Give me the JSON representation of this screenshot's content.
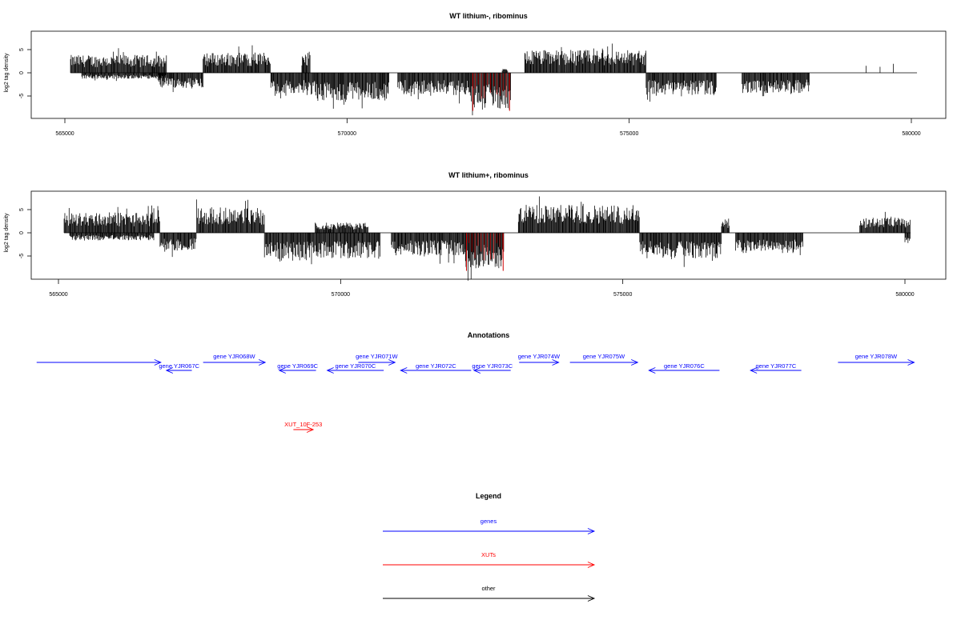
{
  "chart_data": [
    {
      "type": "bar",
      "title": "WT lithium-, ribominus",
      "ylabel": "log2 tag density",
      "xlim": [
        565000,
        580000
      ],
      "ylim": [
        -9,
        9
      ],
      "yticks": [
        -5,
        0,
        5
      ],
      "xticks": [
        565000,
        570000,
        575000,
        580000
      ],
      "baseline": {
        "start": 565100,
        "end": 580100
      },
      "highlight_color": "#cc0000",
      "highlights": [
        {
          "start": 572230,
          "end": 572880,
          "min": -8.2
        }
      ],
      "regions": [
        {
          "start": 565100,
          "end": 566800,
          "sign": 1,
          "amp": 3.5
        },
        {
          "start": 565300,
          "end": 566800,
          "sign": -1,
          "amp": 1.2
        },
        {
          "start": 566650,
          "end": 567450,
          "sign": -1,
          "amp": 3.0
        },
        {
          "start": 567450,
          "end": 568650,
          "sign": 1,
          "amp": 4.0
        },
        {
          "start": 568650,
          "end": 569450,
          "sign": -1,
          "amp": 4.5
        },
        {
          "start": 569200,
          "end": 569350,
          "sign": 1,
          "amp": 3.5
        },
        {
          "start": 569450,
          "end": 570750,
          "sign": -1,
          "amp": 5.5
        },
        {
          "start": 570900,
          "end": 572200,
          "sign": -1,
          "amp": 4.5
        },
        {
          "start": 572200,
          "end": 572900,
          "sign": -1,
          "amp": 7.0
        },
        {
          "start": 572750,
          "end": 572850,
          "sign": 1,
          "amp": 0.8
        },
        {
          "start": 573150,
          "end": 575300,
          "sign": 1,
          "amp": 4.5
        },
        {
          "start": 575300,
          "end": 576550,
          "sign": -1,
          "amp": 4.5
        },
        {
          "start": 577000,
          "end": 578200,
          "sign": -1,
          "amp": 4.0
        },
        {
          "start": 579200,
          "end": 579900,
          "sign": 1,
          "amp": 1.8,
          "sparse": true
        }
      ]
    },
    {
      "type": "bar",
      "title": "WT lithium+, ribominus",
      "ylabel": "log2 tag density",
      "xlim": [
        565000,
        580000
      ],
      "ylim": [
        -9,
        9
      ],
      "yticks": [
        -5,
        0,
        5
      ],
      "xticks": [
        565000,
        570000,
        575000,
        580000
      ],
      "baseline": {
        "start": 565100,
        "end": 580100
      },
      "highlight_color": "#cc0000",
      "highlights": [
        {
          "start": 572230,
          "end": 572880,
          "min": -8.2
        }
      ],
      "regions": [
        {
          "start": 565100,
          "end": 566800,
          "sign": 1,
          "amp": 4.0
        },
        {
          "start": 565200,
          "end": 566700,
          "sign": -1,
          "amp": 1.5
        },
        {
          "start": 566800,
          "end": 567450,
          "sign": -1,
          "amp": 3.5
        },
        {
          "start": 567450,
          "end": 568650,
          "sign": 1,
          "amp": 5.0
        },
        {
          "start": 568650,
          "end": 569400,
          "sign": -1,
          "amp": 5.5
        },
        {
          "start": 569400,
          "end": 570700,
          "sign": -1,
          "amp": 5.0
        },
        {
          "start": 569550,
          "end": 570500,
          "sign": 1,
          "amp": 2.0
        },
        {
          "start": 570900,
          "end": 572200,
          "sign": -1,
          "amp": 4.5
        },
        {
          "start": 572200,
          "end": 572900,
          "sign": -1,
          "amp": 7.0
        },
        {
          "start": 573150,
          "end": 575300,
          "sign": 1,
          "amp": 5.5
        },
        {
          "start": 575300,
          "end": 576750,
          "sign": -1,
          "amp": 5.0
        },
        {
          "start": 576750,
          "end": 576900,
          "sign": 1,
          "amp": 3.0
        },
        {
          "start": 577000,
          "end": 578200,
          "sign": -1,
          "amp": 4.0
        },
        {
          "start": 579200,
          "end": 580100,
          "sign": 1,
          "amp": 3.0
        },
        {
          "start": 580000,
          "end": 580100,
          "sign": -1,
          "amp": 2.0
        }
      ]
    }
  ],
  "annotations": {
    "title": "Annotations",
    "xlim": [
      565000,
      580000
    ],
    "genes_color": "#0000ff",
    "xuts_color": "#ff0000",
    "features": [
      {
        "label": "",
        "start": 564500,
        "end": 566700,
        "dir": 1,
        "row": 0,
        "kind": "gene"
      },
      {
        "label": "gene YJR067C",
        "start": 566800,
        "end": 567250,
        "dir": -1,
        "row": 1,
        "kind": "gene"
      },
      {
        "label": "gene YJR068W",
        "start": 567450,
        "end": 568550,
        "dir": 1,
        "row": 0,
        "kind": "gene"
      },
      {
        "label": "gene YJR069C",
        "start": 568800,
        "end": 569450,
        "dir": -1,
        "row": 1,
        "kind": "gene"
      },
      {
        "label": "gene YJR070C",
        "start": 569650,
        "end": 570650,
        "dir": -1,
        "row": 1,
        "kind": "gene"
      },
      {
        "label": "gene YJR071W",
        "start": 570200,
        "end": 570850,
        "dir": 1,
        "row": 0,
        "kind": "gene"
      },
      {
        "label": "gene YJR072C",
        "start": 570950,
        "end": 572200,
        "dir": -1,
        "row": 1,
        "kind": "gene"
      },
      {
        "label": "gene YJR073C",
        "start": 572250,
        "end": 572900,
        "dir": -1,
        "row": 1,
        "kind": "gene"
      },
      {
        "label": "gene YJR074W",
        "start": 573050,
        "end": 573750,
        "dir": 1,
        "row": 0,
        "kind": "gene"
      },
      {
        "label": "gene YJR075W",
        "start": 573950,
        "end": 575150,
        "dir": 1,
        "row": 0,
        "kind": "gene"
      },
      {
        "label": "gene YJR076C",
        "start": 575350,
        "end": 576600,
        "dir": -1,
        "row": 1,
        "kind": "gene"
      },
      {
        "label": "gene YJR077C",
        "start": 577150,
        "end": 578050,
        "dir": -1,
        "row": 1,
        "kind": "gene"
      },
      {
        "label": "gene YJR078W",
        "start": 578700,
        "end": 580050,
        "dir": 1,
        "row": 0,
        "kind": "gene"
      },
      {
        "label": "XUT_10F-253",
        "start": 569050,
        "end": 569400,
        "dir": 1,
        "row": 2,
        "kind": "xut"
      }
    ]
  },
  "legend": {
    "title": "Legend",
    "items": [
      {
        "label": "genes",
        "color": "#0000ff"
      },
      {
        "label": "XUTs",
        "color": "#ff0000"
      },
      {
        "label": "other",
        "color": "#000000"
      }
    ]
  }
}
